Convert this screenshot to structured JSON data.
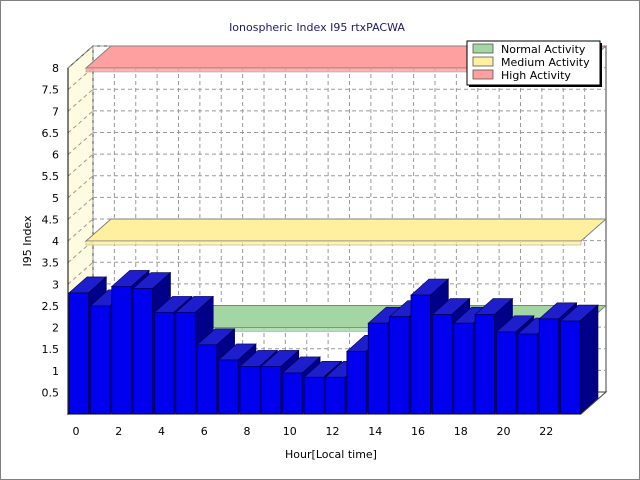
{
  "chart_data": {
    "type": "bar",
    "title": "Ionospheric Index I95 rtxPACWA",
    "xlabel": "Hour[Local time]",
    "ylabel": "I95 Index",
    "ylim": [
      0,
      8
    ],
    "y_ticks": [
      "0.5",
      "1",
      "1.5",
      "2",
      "2.5",
      "3",
      "3.5",
      "4",
      "4.5",
      "5",
      "5.5",
      "6",
      "6.5",
      "7",
      "7.5",
      "8"
    ],
    "x_ticks": [
      "0",
      "2",
      "4",
      "6",
      "8",
      "10",
      "12",
      "14",
      "16",
      "18",
      "20",
      "22"
    ],
    "x": [
      0,
      1,
      2,
      3,
      4,
      5,
      6,
      7,
      8,
      9,
      10,
      11,
      12,
      13,
      14,
      15,
      16,
      17,
      18,
      19,
      20,
      21,
      22,
      23
    ],
    "values": [
      2.8,
      2.5,
      2.95,
      2.9,
      2.35,
      2.35,
      1.6,
      1.25,
      1.1,
      1.1,
      0.95,
      0.85,
      0.85,
      1.45,
      2.1,
      2.25,
      2.75,
      2.3,
      2.1,
      2.3,
      1.9,
      1.85,
      2.2,
      2.15
    ],
    "bands": [
      {
        "name": "Normal Activity",
        "value": 2,
        "color": "#a3d6a3"
      },
      {
        "name": "Medium Activity",
        "value": 4,
        "color": "#fff0a0"
      },
      {
        "name": "High Activity",
        "value": 8,
        "color": "#ffa0a0"
      }
    ],
    "legend_position": "top-right",
    "grid": true,
    "bar_color": "#0000ee"
  }
}
